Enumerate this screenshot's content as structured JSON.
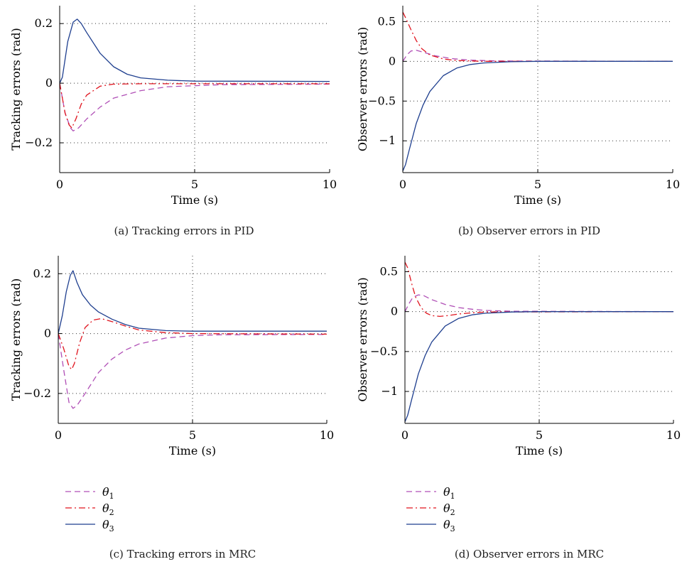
{
  "colors": {
    "theta1": "#b04fb6",
    "theta2": "#e0141e",
    "theta3": "#1f3f8f"
  },
  "legend": [
    {
      "symbol": "θ",
      "sub": "1",
      "style": "dashed"
    },
    {
      "symbol": "θ",
      "sub": "2",
      "style": "dashdot"
    },
    {
      "symbol": "θ",
      "sub": "3",
      "style": "solid"
    }
  ],
  "chart_data": [
    {
      "type": "line",
      "caption": "(a)  Tracking errors in PID",
      "xlabel": "Time (s)",
      "ylabel": "Tracking errors (rad)",
      "xlim": [
        0,
        10
      ],
      "ylim": [
        -0.3,
        0.26
      ],
      "xticks": [
        0,
        5,
        10
      ],
      "yticks": [
        0.2,
        0,
        -0.2
      ],
      "ytick_labels": [
        "0.2",
        "0",
        "−0.2"
      ],
      "grid": true,
      "series": [
        {
          "key": "theta1",
          "style": "dashed",
          "x": [
            0,
            0.2,
            0.4,
            0.5,
            0.7,
            1,
            1.5,
            2,
            3,
            4,
            6,
            10
          ],
          "y": [
            0,
            -0.1,
            -0.15,
            -0.16,
            -0.15,
            -0.12,
            -0.08,
            -0.05,
            -0.025,
            -0.012,
            -0.005,
            -0.003
          ]
        },
        {
          "key": "theta2",
          "style": "dashdot",
          "x": [
            0,
            0.2,
            0.35,
            0.45,
            0.6,
            0.8,
            1,
            1.5,
            2,
            3,
            10
          ],
          "y": [
            0,
            -0.1,
            -0.14,
            -0.15,
            -0.12,
            -0.07,
            -0.04,
            -0.01,
            -0.003,
            -0.002,
            -0.002
          ]
        },
        {
          "key": "theta3",
          "style": "solid",
          "x": [
            0,
            0.1,
            0.3,
            0.5,
            0.65,
            0.8,
            1,
            1.5,
            2,
            2.5,
            3,
            4,
            5,
            10
          ],
          "y": [
            0,
            0.02,
            0.14,
            0.205,
            0.215,
            0.2,
            0.17,
            0.1,
            0.055,
            0.03,
            0.018,
            0.01,
            0.007,
            0.006
          ]
        }
      ]
    },
    {
      "type": "line",
      "caption": "(b)  Observer errors in PID",
      "xlabel": "Time (s)",
      "ylabel": "Observer errors (rad)",
      "xlim": [
        0,
        10
      ],
      "ylim": [
        -1.4,
        0.7
      ],
      "xticks": [
        0,
        5,
        10
      ],
      "yticks": [
        0.5,
        0,
        -0.5,
        -1
      ],
      "ytick_labels": [
        "0.5",
        "0",
        "−0.5",
        "−1"
      ],
      "grid": true,
      "series": [
        {
          "key": "theta1",
          "style": "dashed",
          "x": [
            0,
            0.15,
            0.3,
            0.5,
            0.8,
            1.2,
            1.8,
            2.5,
            3.5,
            10
          ],
          "y": [
            0,
            0.08,
            0.13,
            0.14,
            0.11,
            0.07,
            0.035,
            0.015,
            0.005,
            0
          ]
        },
        {
          "key": "theta2",
          "style": "dashdot",
          "x": [
            0,
            0.1,
            0.3,
            0.5,
            0.7,
            1,
            1.5,
            2,
            3,
            10
          ],
          "y": [
            0.62,
            0.55,
            0.4,
            0.26,
            0.16,
            0.08,
            0.03,
            0.01,
            0,
            0
          ]
        },
        {
          "key": "theta3",
          "style": "solid",
          "x": [
            0,
            0.1,
            0.25,
            0.5,
            0.75,
            1,
            1.5,
            2,
            2.5,
            3,
            4,
            5,
            10
          ],
          "y": [
            -1.38,
            -1.3,
            -1.1,
            -0.78,
            -0.55,
            -0.38,
            -0.18,
            -0.085,
            -0.04,
            -0.02,
            -0.005,
            0,
            0
          ]
        }
      ]
    },
    {
      "type": "line",
      "caption": "(c)  Tracking errors in MRC",
      "xlabel": "Time (s)",
      "ylabel": "Tracking errors (rad)",
      "xlim": [
        0,
        10
      ],
      "ylim": [
        -0.3,
        0.26
      ],
      "xticks": [
        0,
        5,
        10
      ],
      "yticks": [
        0.2,
        0,
        -0.2
      ],
      "ytick_labels": [
        "0.2",
        "0",
        "−0.2"
      ],
      "grid": true,
      "series": [
        {
          "key": "theta1",
          "style": "dashed",
          "x": [
            0,
            0.2,
            0.4,
            0.55,
            0.7,
            1,
            1.5,
            2,
            2.5,
            3,
            4,
            5,
            6,
            10
          ],
          "y": [
            0,
            -0.12,
            -0.23,
            -0.25,
            -0.24,
            -0.2,
            -0.13,
            -0.085,
            -0.055,
            -0.035,
            -0.015,
            -0.007,
            -0.004,
            -0.003
          ]
        },
        {
          "key": "theta2",
          "style": "dashdot",
          "x": [
            0,
            0.2,
            0.4,
            0.5,
            0.6,
            0.8,
            1,
            1.3,
            1.6,
            2,
            2.5,
            3,
            4,
            5,
            10
          ],
          "y": [
            0,
            -0.05,
            -0.11,
            -0.12,
            -0.1,
            -0.03,
            0.02,
            0.045,
            0.05,
            0.04,
            0.025,
            0.012,
            0.003,
            0,
            -0.002
          ]
        },
        {
          "key": "theta3",
          "style": "solid",
          "x": [
            0,
            0.15,
            0.3,
            0.45,
            0.55,
            0.7,
            0.9,
            1.2,
            1.5,
            2,
            2.5,
            3,
            4,
            5,
            10
          ],
          "y": [
            0,
            0.06,
            0.14,
            0.195,
            0.21,
            0.17,
            0.13,
            0.095,
            0.072,
            0.048,
            0.03,
            0.018,
            0.01,
            0.008,
            0.008
          ]
        }
      ]
    },
    {
      "type": "line",
      "caption": "(d)  Observer errors in MRC",
      "xlabel": "Time (s)",
      "ylabel": "Observer errors (rad)",
      "xlim": [
        0,
        10
      ],
      "ylim": [
        -1.4,
        0.7
      ],
      "xticks": [
        0,
        5,
        10
      ],
      "yticks": [
        0.5,
        0,
        -0.5,
        -1
      ],
      "ytick_labels": [
        "0.5",
        "0",
        "−0.5",
        "−1"
      ],
      "grid": true,
      "series": [
        {
          "key": "theta1",
          "style": "dashed",
          "x": [
            0,
            0.15,
            0.3,
            0.5,
            0.7,
            1,
            1.5,
            2,
            2.5,
            3,
            4,
            10
          ],
          "y": [
            0,
            0.1,
            0.18,
            0.21,
            0.2,
            0.15,
            0.09,
            0.05,
            0.03,
            0.015,
            0.005,
            0
          ]
        },
        {
          "key": "theta2",
          "style": "dashdot",
          "x": [
            0,
            0.1,
            0.25,
            0.4,
            0.6,
            0.8,
            1,
            1.3,
            1.6,
            2,
            2.5,
            3,
            10
          ],
          "y": [
            0.62,
            0.55,
            0.35,
            0.18,
            0.05,
            -0.02,
            -0.05,
            -0.06,
            -0.05,
            -0.03,
            -0.015,
            -0.005,
            0
          ]
        },
        {
          "key": "theta3",
          "style": "solid",
          "x": [
            0,
            0.1,
            0.25,
            0.5,
            0.75,
            1,
            1.5,
            2,
            2.5,
            3,
            4,
            5,
            10
          ],
          "y": [
            -1.38,
            -1.3,
            -1.1,
            -0.78,
            -0.55,
            -0.38,
            -0.18,
            -0.085,
            -0.04,
            -0.02,
            -0.005,
            0,
            0
          ]
        }
      ]
    }
  ]
}
